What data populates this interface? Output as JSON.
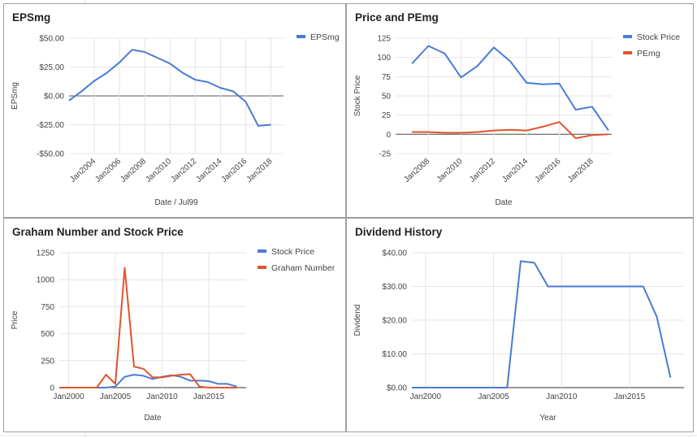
{
  "colors": {
    "blue": "#4a7bd3",
    "red": "#e2532d",
    "grid": "#e4e4e4",
    "zero": "#7a7a7a",
    "axis_text": "#444444",
    "title_text": "#222222"
  },
  "chart_data": [
    {
      "type": "line",
      "title": "EPSmg",
      "xlabel": "Date / Jul99",
      "ylabel": "EPSmg",
      "ylim": [
        -50,
        50
      ],
      "yticks": [
        "$50.00",
        "$25.00",
        "$0.00",
        "-$25.00",
        "-$50.00"
      ],
      "xticks": [
        "Jan2004",
        "Jan2006",
        "Jan2008",
        "Jan2010",
        "Jan2012",
        "Jan2014",
        "Jan2016",
        "Jan2018"
      ],
      "legend": "right",
      "grid": true,
      "x": [
        2002,
        2003,
        2004,
        2005,
        2006,
        2007,
        2008,
        2009,
        2010,
        2011,
        2012,
        2013,
        2014,
        2015,
        2016,
        2017,
        2018,
        2019
      ],
      "series": [
        {
          "name": "EPSmg",
          "color": "blue",
          "values": [
            -4,
            4,
            13,
            20,
            29,
            40,
            38,
            33,
            28,
            20,
            14,
            12,
            7,
            4,
            -5,
            -26,
            -25,
            null
          ]
        }
      ]
    },
    {
      "type": "line",
      "title": "Price and PEmg",
      "xlabel": "Date",
      "ylabel": "Stock Price",
      "ylim": [
        -25,
        125
      ],
      "yticks": [
        "125",
        "100",
        "75",
        "50",
        "25",
        "0",
        "-25"
      ],
      "xticks": [
        "Jan2008",
        "Jan2010",
        "Jan2012",
        "Jan2014",
        "Jan2016",
        "Jan2018"
      ],
      "legend": "right",
      "grid": true,
      "x": [
        2006,
        2007,
        2008,
        2009,
        2010,
        2011,
        2012,
        2013,
        2014,
        2015,
        2016,
        2017,
        2018,
        2019
      ],
      "series": [
        {
          "name": "Stock Price",
          "color": "blue",
          "values": [
            null,
            92,
            115,
            105,
            74,
            89,
            113,
            95,
            67,
            65,
            66,
            32,
            36,
            5
          ]
        },
        {
          "name": "PEmg",
          "color": "red",
          "values": [
            null,
            3,
            3,
            2,
            2,
            3,
            5,
            6,
            5,
            10,
            16,
            -5,
            -1,
            0
          ]
        }
      ]
    },
    {
      "type": "line",
      "title": "Graham Number and Stock Price",
      "xlabel": "Date",
      "ylabel": "Price",
      "ylim": [
        0,
        1250
      ],
      "yticks": [
        "1250",
        "1000",
        "750",
        "500",
        "250",
        "0"
      ],
      "xticks": [
        "Jan2000",
        "Jan2005",
        "Jan2010",
        "Jan2015"
      ],
      "legend": "right",
      "grid": true,
      "x": [
        1999,
        2000,
        2001,
        2002,
        2003,
        2004,
        2005,
        2006,
        2007,
        2008,
        2009,
        2010,
        2011,
        2012,
        2013,
        2014,
        2015,
        2016,
        2017,
        2018,
        2019
      ],
      "series": [
        {
          "name": "Stock Price",
          "color": "blue",
          "values": [
            0,
            0,
            0,
            0,
            0,
            0,
            10,
            100,
            120,
            110,
            80,
            100,
            115,
            100,
            65,
            65,
            60,
            35,
            35,
            10,
            null
          ]
        },
        {
          "name": "Graham Number",
          "color": "red",
          "values": [
            0,
            0,
            0,
            0,
            0,
            120,
            35,
            1110,
            195,
            175,
            95,
            95,
            110,
            120,
            125,
            10,
            0,
            0,
            0,
            0,
            null
          ]
        }
      ]
    },
    {
      "type": "line",
      "title": "Dividend History",
      "xlabel": "Year",
      "ylabel": "Dividend",
      "ylim": [
        0,
        40
      ],
      "yticks": [
        "$40.00",
        "$30.00",
        "$20.00",
        "$10.00",
        "$0.00"
      ],
      "xticks": [
        "Jan2000",
        "Jan2005",
        "Jan2010",
        "Jan2015"
      ],
      "legend": "none",
      "grid": true,
      "x": [
        1999,
        2000,
        2001,
        2002,
        2003,
        2004,
        2005,
        2006,
        2007,
        2008,
        2009,
        2010,
        2011,
        2012,
        2013,
        2014,
        2015,
        2016,
        2017,
        2018,
        2019
      ],
      "series": [
        {
          "name": "",
          "color": "blue",
          "values": [
            0,
            0,
            0,
            0,
            0,
            0,
            0,
            0,
            37.5,
            37,
            30,
            30,
            30,
            30,
            30,
            30,
            30,
            30,
            21,
            3,
            null
          ]
        }
      ]
    }
  ]
}
